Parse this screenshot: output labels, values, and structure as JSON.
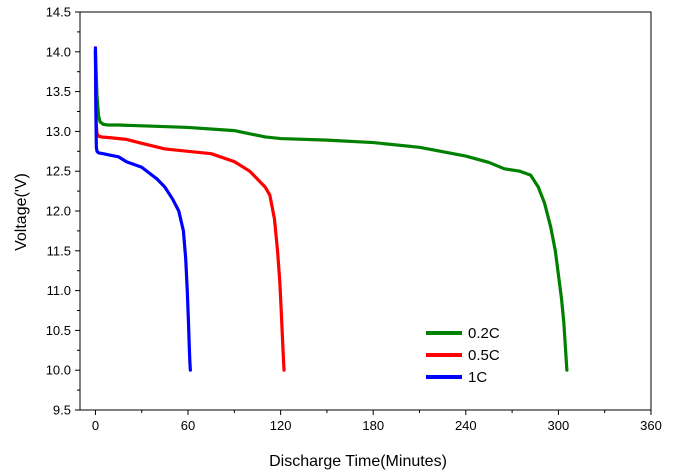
{
  "chart_data": {
    "type": "line",
    "title": "",
    "xlabel": "Discharge Time(Minutes)",
    "ylabel": "Voltage(ʹV)",
    "xlim": [
      -10,
      360
    ],
    "ylim": [
      9.5,
      14.5
    ],
    "x_ticks": [
      0,
      60,
      120,
      180,
      240,
      300,
      360
    ],
    "y_ticks": [
      9.5,
      10.0,
      10.5,
      11.0,
      11.5,
      12.0,
      12.5,
      13.0,
      13.5,
      14.0,
      14.5
    ],
    "x_tick_labels": [
      "0",
      "60",
      "120",
      "180",
      "240",
      "300",
      "360"
    ],
    "y_tick_labels": [
      "9.5",
      "10.0",
      "10.5",
      "11.0",
      "11.5",
      "12.0",
      "12.5",
      "13.0",
      "13.5",
      "14.0",
      "14.5"
    ],
    "grid": false,
    "legend_position": "bottom-right",
    "series": [
      {
        "name": "0.2C",
        "color": "#008000",
        "x": [
          0,
          1,
          2,
          3,
          5,
          8,
          15,
          30,
          60,
          90,
          100,
          110,
          120,
          150,
          180,
          210,
          240,
          255,
          265,
          275,
          282,
          287,
          291,
          295,
          298,
          300,
          302,
          303.5,
          304.5,
          305,
          305.5
        ],
        "y": [
          14.0,
          13.45,
          13.2,
          13.12,
          13.09,
          13.08,
          13.08,
          13.07,
          13.05,
          13.01,
          12.97,
          12.93,
          12.91,
          12.89,
          12.86,
          12.8,
          12.69,
          12.61,
          12.53,
          12.5,
          12.45,
          12.3,
          12.1,
          11.8,
          11.5,
          11.2,
          10.9,
          10.6,
          10.3,
          10.15,
          10.0
        ]
      },
      {
        "name": "0.5C",
        "color": "#ff0000",
        "x": [
          0,
          0.5,
          1,
          2,
          4,
          10,
          20,
          30,
          45,
          60,
          75,
          90,
          100,
          105,
          110,
          113,
          116,
          118,
          119.5,
          120.5,
          121.2,
          121.8,
          122.2
        ],
        "y": [
          14.0,
          13.1,
          12.97,
          12.94,
          12.93,
          12.92,
          12.9,
          12.85,
          12.78,
          12.75,
          12.72,
          12.62,
          12.5,
          12.4,
          12.3,
          12.2,
          11.9,
          11.5,
          11.1,
          10.7,
          10.4,
          10.15,
          10.0
        ]
      },
      {
        "name": "1C",
        "color": "#0000ff",
        "x": [
          0,
          0.3,
          0.6,
          1,
          2,
          5,
          10,
          15,
          20,
          30,
          40,
          45,
          50,
          54,
          57,
          58.5,
          59.5,
          60.3,
          60.8,
          61.2,
          61.5
        ],
        "y": [
          14.05,
          13.2,
          12.8,
          12.75,
          12.73,
          12.72,
          12.7,
          12.68,
          12.62,
          12.55,
          12.4,
          12.3,
          12.15,
          12.0,
          11.75,
          11.4,
          11.0,
          10.6,
          10.3,
          10.1,
          10.0
        ]
      }
    ]
  }
}
